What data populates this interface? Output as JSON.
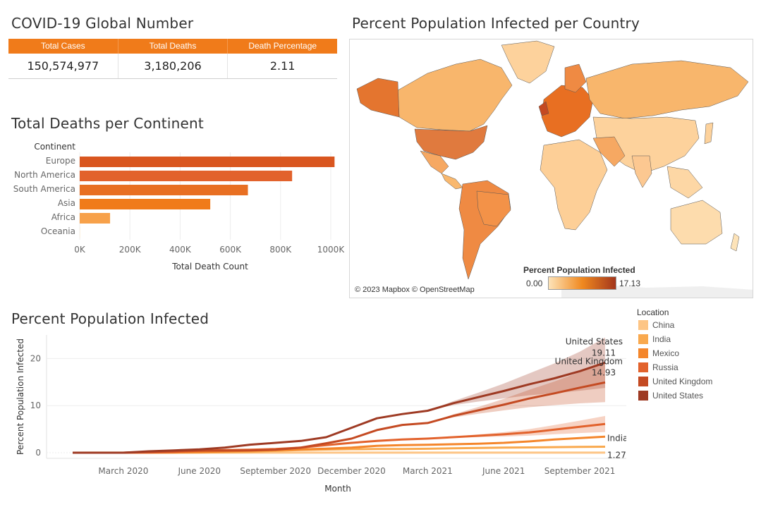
{
  "kpi": {
    "title": "COVID-19 Global Number",
    "headers": [
      "Total Cases",
      "Total Deaths",
      "Death Percentage"
    ],
    "values": [
      "150,574,977",
      "3,180,206",
      "2.11"
    ],
    "header_color": "#f07b1a"
  },
  "continent_panel": {
    "title": "Total Deaths per Continent"
  },
  "map_panel": {
    "title": "Percent Population Infected per Country",
    "attribution": "© 2023 Mapbox © OpenStreetMap",
    "legend_title": "Percent Population Infected",
    "legend_min": "0.00",
    "legend_max": "17.13",
    "legend_colors": [
      "#fde3b8",
      "#f0891f",
      "#a3361c"
    ]
  },
  "line_panel": {
    "title": "Percent Population Infected",
    "legend_title": "Location",
    "locations": [
      {
        "name": "China",
        "color": "#fdc585"
      },
      {
        "name": "India",
        "color": "#f9a94e"
      },
      {
        "name": "Mexico",
        "color": "#f4862b"
      },
      {
        "name": "Russia",
        "color": "#e2622c"
      },
      {
        "name": "United Kingdom",
        "color": "#c44a22"
      },
      {
        "name": "United States",
        "color": "#9e3a23"
      }
    ],
    "annotations": [
      {
        "series": "United States",
        "label": "United States",
        "value": "19.11"
      },
      {
        "series": "United Kingdom",
        "label": "United Kingdom",
        "value": "14.93"
      },
      {
        "series": "India",
        "label": "India",
        "value": "1.27"
      }
    ]
  },
  "chart_data": [
    {
      "type": "bar",
      "title": "Total Deaths per Continent",
      "category_header": "Continent",
      "categories": [
        "Europe",
        "North America",
        "South America",
        "Asia",
        "Africa",
        "Oceania"
      ],
      "values": [
        1015000,
        846000,
        670000,
        520000,
        121000,
        1000
      ],
      "colors": [
        "#d9561f",
        "#e2622c",
        "#e86f22",
        "#f07b1a",
        "#f7a14a",
        "#fde3b8"
      ],
      "xlabel": "Total Death Count",
      "xlim": [
        0,
        1000000
      ],
      "xticks": [
        0,
        200000,
        400000,
        600000,
        800000,
        1000000
      ],
      "xtick_labels": [
        "0K",
        "200K",
        "400K",
        "600K",
        "800K",
        "1000K"
      ],
      "grid": true
    },
    {
      "type": "line",
      "title": "Percent Population Infected",
      "xlabel": "Month",
      "ylabel": "Percent Population Infected",
      "ylim": [
        0,
        25
      ],
      "yticks": [
        0,
        10,
        20
      ],
      "x": [
        "2020-01",
        "2020-02",
        "2020-03",
        "2020-04",
        "2020-05",
        "2020-06",
        "2020-07",
        "2020-08",
        "2020-09",
        "2020-10",
        "2020-11",
        "2020-12",
        "2021-01",
        "2021-02",
        "2021-03",
        "2021-04",
        "2021-05",
        "2021-06",
        "2021-07",
        "2021-08",
        "2021-09",
        "2021-10"
      ],
      "xtick_labels": [
        {
          "x": "2020-03",
          "label": "March 2020"
        },
        {
          "x": "2020-06",
          "label": "June 2020"
        },
        {
          "x": "2020-09",
          "label": "September 2020"
        },
        {
          "x": "2020-12",
          "label": "December 2020"
        },
        {
          "x": "2021-03",
          "label": "March 2021"
        },
        {
          "x": "2021-06",
          "label": "June 2021"
        },
        {
          "x": "2021-09",
          "label": "September 2021"
        }
      ],
      "series": [
        {
          "name": "China",
          "values": [
            0,
            0.01,
            0.01,
            0.01,
            0.01,
            0.01,
            0.01,
            0.01,
            0.01,
            0.01,
            0.01,
            0.01,
            0.01,
            0.01,
            0.01,
            0.01,
            0.01,
            0.01,
            0.01,
            0.01,
            0.01,
            0.01
          ]
        },
        {
          "name": "India",
          "values": [
            0,
            0,
            0,
            0,
            0.01,
            0.03,
            0.1,
            0.2,
            0.4,
            0.58,
            0.68,
            0.75,
            0.78,
            0.8,
            0.84,
            0.93,
            1.02,
            1.08,
            1.13,
            1.18,
            1.23,
            1.27
          ]
        },
        {
          "name": "Mexico",
          "values": [
            0,
            0,
            0,
            0,
            0.05,
            0.15,
            0.3,
            0.43,
            0.58,
            0.7,
            0.85,
            1.1,
            1.45,
            1.6,
            1.68,
            1.8,
            1.92,
            2.1,
            2.4,
            2.8,
            3.1,
            3.4
          ]
        },
        {
          "name": "Russia",
          "values": [
            0,
            0,
            0,
            0.05,
            0.2,
            0.4,
            0.55,
            0.65,
            0.8,
            1.1,
            1.6,
            2.1,
            2.5,
            2.8,
            3.0,
            3.3,
            3.6,
            3.9,
            4.3,
            4.9,
            5.5,
            6.1
          ]
        },
        {
          "name": "United Kingdom",
          "values": [
            0,
            0,
            0,
            0.2,
            0.35,
            0.45,
            0.45,
            0.5,
            0.65,
            1.1,
            2.0,
            3.0,
            4.8,
            5.9,
            6.3,
            7.8,
            9.0,
            10.2,
            11.5,
            12.6,
            13.8,
            14.93
          ]
        },
        {
          "name": "United States",
          "values": [
            0,
            0,
            0,
            0.3,
            0.5,
            0.7,
            1.1,
            1.7,
            2.1,
            2.5,
            3.3,
            5.3,
            7.3,
            8.2,
            8.9,
            10.5,
            11.8,
            13.1,
            14.5,
            15.8,
            17.3,
            19.11
          ]
        }
      ]
    }
  ]
}
